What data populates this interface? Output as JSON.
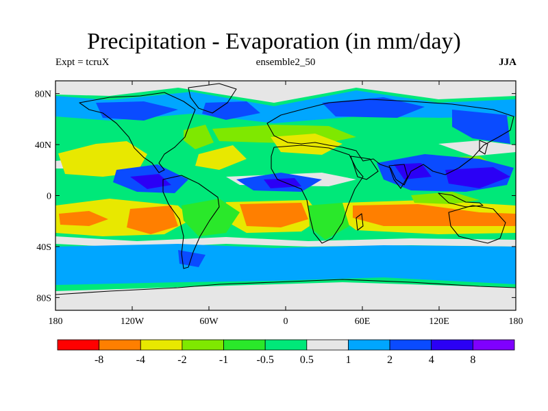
{
  "header": {
    "title": "Precipitation - Evaporation (in mm/day)",
    "left": "Expt = tcruX",
    "center": "ensemble2_50",
    "right": "JJA"
  },
  "map": {
    "lon_range": [
      -180,
      180
    ],
    "lat_range": [
      -90,
      90
    ],
    "x_ticks": [
      {
        "value": -180,
        "label": "180"
      },
      {
        "value": -120,
        "label": "120W"
      },
      {
        "value": -60,
        "label": "60W"
      },
      {
        "value": 0,
        "label": "0"
      },
      {
        "value": 60,
        "label": "60E"
      },
      {
        "value": 120,
        "label": "120E"
      },
      {
        "value": 180,
        "label": "180"
      }
    ],
    "y_ticks": [
      {
        "value": 80,
        "label": "80N"
      },
      {
        "value": 40,
        "label": "40N"
      },
      {
        "value": 0,
        "label": "0"
      },
      {
        "value": -40,
        "label": "40S"
      },
      {
        "value": -80,
        "label": "80S"
      }
    ],
    "background_class_color": "#00e879"
  },
  "colorbar": {
    "colors": [
      "#ff0000",
      "#ff7f00",
      "#e8e800",
      "#7fe800",
      "#2ae82a",
      "#00e879",
      "#e6e6e6",
      "#00a6ff",
      "#0a4bff",
      "#2b00f5",
      "#7f00ff"
    ],
    "labels": [
      "-8",
      "-4",
      "-2",
      "-1",
      "-0.5",
      "0.5",
      "1",
      "2",
      "4",
      "8"
    ]
  }
}
